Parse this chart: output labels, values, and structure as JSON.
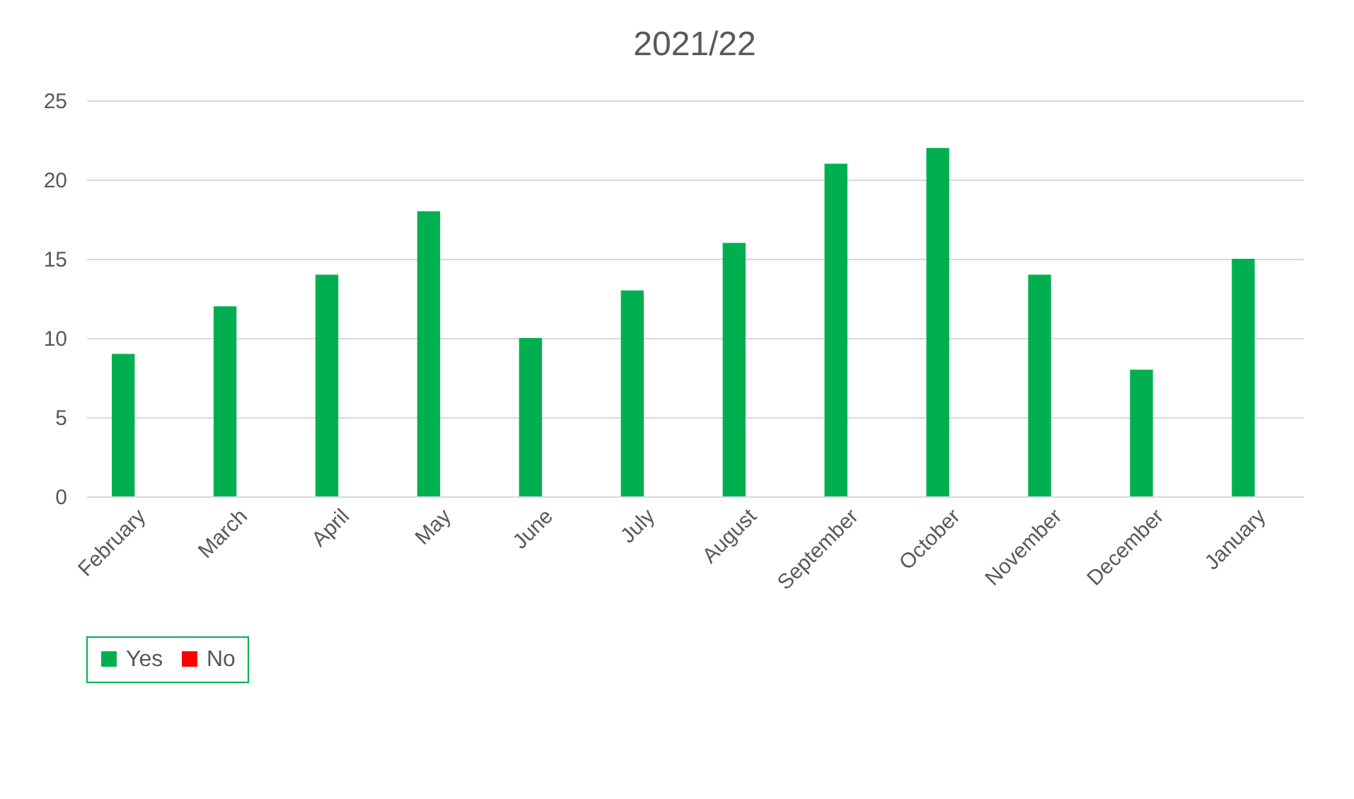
{
  "chart_data": {
    "type": "bar",
    "title": "2021/22",
    "categories": [
      "February",
      "March",
      "April",
      "May",
      "June",
      "July",
      "August",
      "September",
      "October",
      "November",
      "December",
      "January"
    ],
    "series": [
      {
        "name": "Yes",
        "color": "#00b050",
        "values": [
          9,
          12,
          14,
          18,
          10,
          13,
          16,
          21,
          22,
          14,
          8,
          15
        ]
      },
      {
        "name": "No",
        "color": "#ff0000",
        "values": [
          0,
          0,
          0,
          0,
          0,
          0,
          0,
          0,
          0,
          0,
          0,
          0
        ]
      }
    ],
    "ylim": [
      0,
      25
    ],
    "yticks": [
      0,
      5,
      10,
      15,
      20,
      25
    ],
    "grid": "y",
    "legend": "bottom"
  }
}
